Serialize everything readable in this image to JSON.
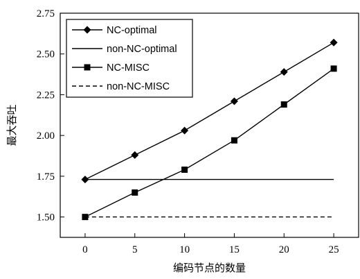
{
  "chart_data": {
    "type": "line",
    "xlabel": "编码节点的数量",
    "ylabel": "最大吞吐",
    "x": [
      0,
      5,
      10,
      15,
      20,
      25
    ],
    "xticks": [
      "0",
      "5",
      "10",
      "15",
      "20",
      "25"
    ],
    "yticks": [
      "1.50",
      "1.75",
      "2.00",
      "2.25",
      "2.50",
      "2.75"
    ],
    "xlim": [
      -2.5,
      27.5
    ],
    "ylim": [
      1.375,
      2.75
    ],
    "legend_position": "top-left",
    "series": [
      {
        "name": "NC-optimal",
        "values": [
          1.73,
          1.88,
          2.03,
          2.21,
          2.39,
          2.57
        ],
        "marker": "diamond",
        "line": "solid",
        "color": "#000000"
      },
      {
        "name": "non-NC-optimal",
        "values": [
          1.73,
          1.73,
          1.73,
          1.73,
          1.73,
          1.73
        ],
        "marker": "none",
        "line": "solid",
        "color": "#000000"
      },
      {
        "name": "NC-MISC",
        "values": [
          1.5,
          1.65,
          1.79,
          1.97,
          2.19,
          2.41
        ],
        "marker": "square",
        "line": "solid",
        "color": "#000000"
      },
      {
        "name": "non-NC-MISC",
        "values": [
          1.5,
          1.5,
          1.5,
          1.5,
          1.5,
          1.5
        ],
        "marker": "none",
        "line": "dashed",
        "color": "#000000"
      }
    ]
  }
}
